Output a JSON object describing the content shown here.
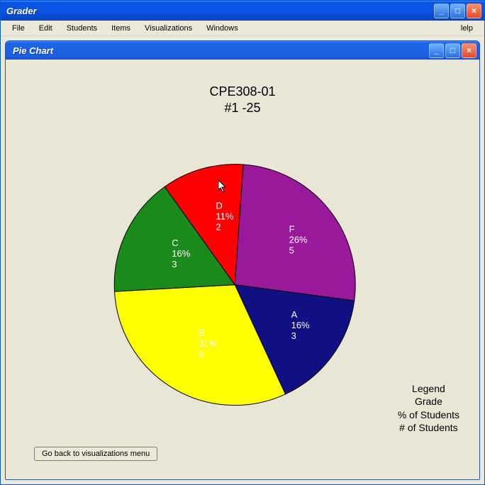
{
  "outer_window": {
    "title": "Grader",
    "help_label": "lelp"
  },
  "menubar": {
    "items": [
      "File",
      "Edit",
      "Students",
      "Items",
      "Visualizations",
      "Windows"
    ]
  },
  "inner_window": {
    "title": "Pie Chart"
  },
  "chart": {
    "type": "pie",
    "title_line1": "CPE308-01",
    "title_line2": "#1 -25",
    "title_fontsize": 18,
    "background_color": "#eae6d6",
    "radius": 170,
    "stroke": "#000000",
    "stroke_width": 1,
    "slices": [
      {
        "grade": "F",
        "percent": 26,
        "count": 5,
        "color": "#9a189a",
        "label_color": "#ffffff"
      },
      {
        "grade": "A",
        "percent": 16,
        "count": 3,
        "color": "#101084",
        "label_color": "#ffffff"
      },
      {
        "grade": "B",
        "percent": 31,
        "count": 6,
        "color": "#ffff00",
        "label_color": "#ffffff"
      },
      {
        "grade": "C",
        "percent": 16,
        "count": 3,
        "color": "#1a8a1a",
        "label_color": "#ffffff"
      },
      {
        "grade": "D",
        "percent": 11,
        "count": 2,
        "color": "#ff0000",
        "label_color": "#ffffff"
      }
    ],
    "start_angle_deg": -86
  },
  "legend": {
    "lines": [
      "Legend",
      "Grade",
      "% of Students",
      "# of Students"
    ]
  },
  "buttons": {
    "back_label": "Go back to visualizations menu"
  },
  "window_controls": {
    "minimize": "_",
    "maximize": "□",
    "close": "×"
  }
}
